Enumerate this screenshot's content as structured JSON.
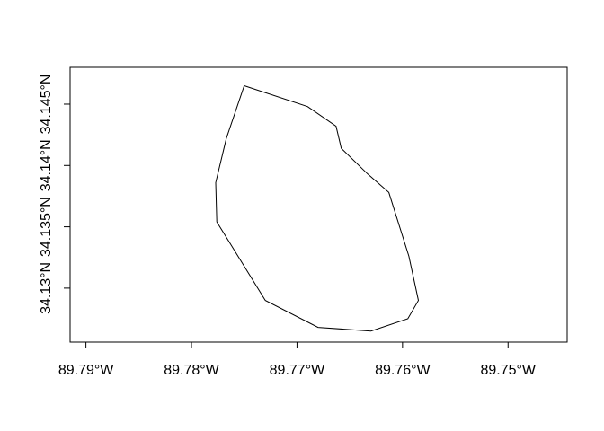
{
  "chart_data": {
    "type": "map",
    "xlim": [
      -89.7915,
      -89.7444
    ],
    "ylim": [
      34.1256,
      34.148
    ],
    "x_ticks": [
      {
        "value": -89.79,
        "label": "89.79°W"
      },
      {
        "value": -89.78,
        "label": "89.78°W"
      },
      {
        "value": -89.77,
        "label": "89.77°W"
      },
      {
        "value": -89.76,
        "label": "89.76°W"
      },
      {
        "value": -89.75,
        "label": "89.75°W"
      }
    ],
    "y_ticks": [
      {
        "value": 34.13,
        "label": "34.13°N"
      },
      {
        "value": 34.135,
        "label": "34.135°N"
      },
      {
        "value": 34.14,
        "label": "34.14°N"
      },
      {
        "value": 34.145,
        "label": "34.145°N"
      }
    ],
    "polygon": [
      [
        -89.775,
        34.1465
      ],
      [
        -89.769,
        34.1448
      ],
      [
        -89.7663,
        34.1432
      ],
      [
        -89.7658,
        34.1414
      ],
      [
        -89.7633,
        34.1393
      ],
      [
        -89.7613,
        34.1378
      ],
      [
        -89.7594,
        34.1326
      ],
      [
        -89.7585,
        34.129
      ],
      [
        -89.7595,
        34.1275
      ],
      [
        -89.763,
        34.1265
      ],
      [
        -89.768,
        34.1268
      ],
      [
        -89.773,
        34.129
      ],
      [
        -89.7776,
        34.1354
      ],
      [
        -89.7777,
        34.1386
      ],
      [
        -89.7767,
        34.1422
      ]
    ],
    "grid": false,
    "box": true
  }
}
